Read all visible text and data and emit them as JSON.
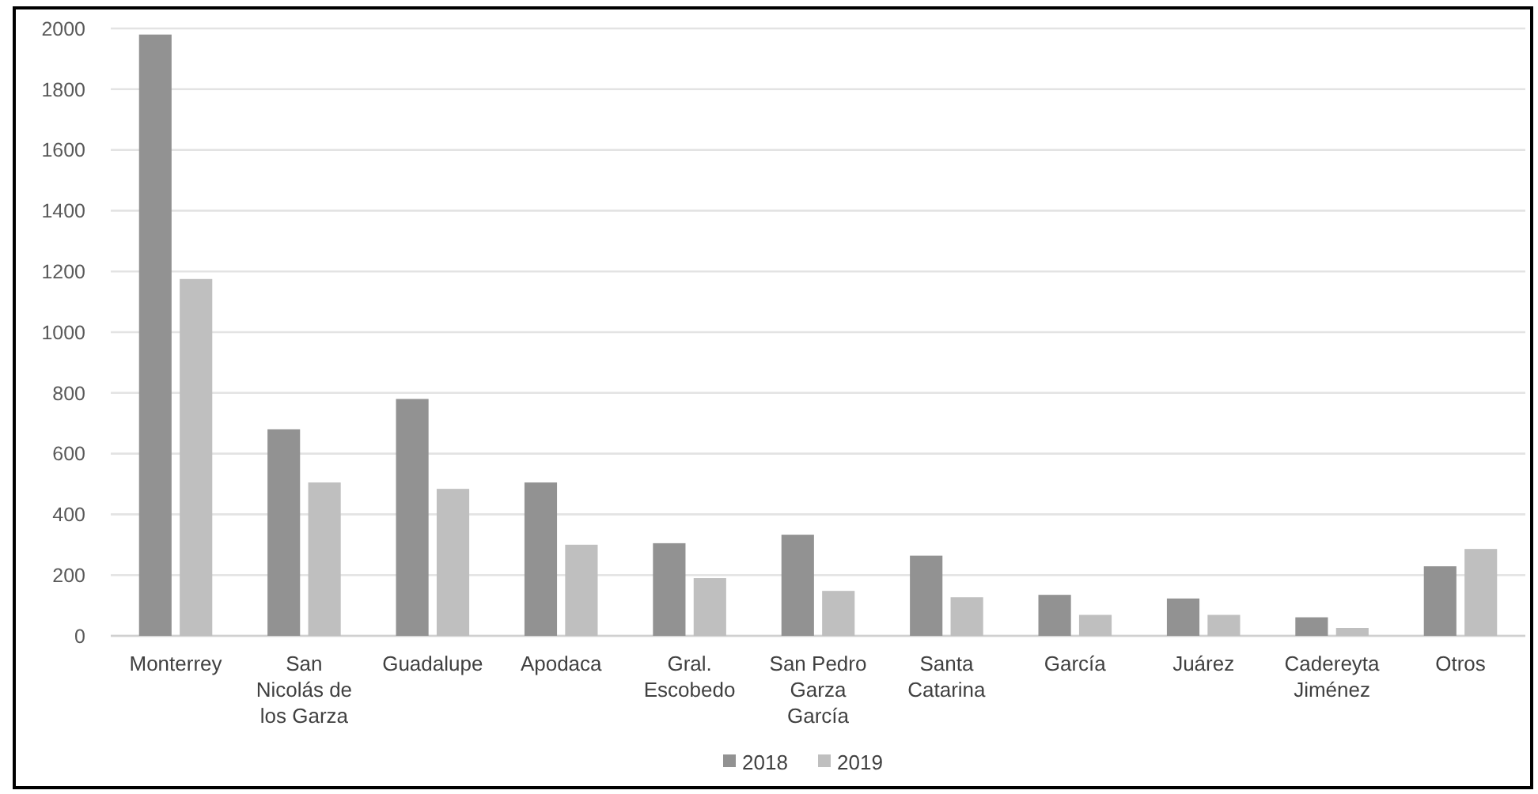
{
  "chart_data": {
    "type": "bar",
    "categories": [
      "Monterrey",
      "San Nicolás de los Garza",
      "Guadalupe",
      "Apodaca",
      "Gral. Escobedo",
      "San Pedro Garza García",
      "Santa Catarina",
      "García",
      "Juárez",
      "Cadereyta Jiménez",
      "Otros"
    ],
    "series": [
      {
        "name": "2018",
        "color": "#929292",
        "values": [
          1980,
          680,
          780,
          505,
          305,
          333,
          264,
          135,
          123,
          61,
          229
        ]
      },
      {
        "name": "2019",
        "color": "#bfbfbf",
        "values": [
          1175,
          505,
          484,
          300,
          190,
          148,
          127,
          69,
          69,
          26,
          286
        ]
      }
    ],
    "ylim": [
      0,
      2000
    ],
    "yticks": [
      0,
      200,
      400,
      600,
      800,
      1000,
      1200,
      1400,
      1600,
      1800,
      2000
    ],
    "grid": "y",
    "legend": "bottom"
  }
}
